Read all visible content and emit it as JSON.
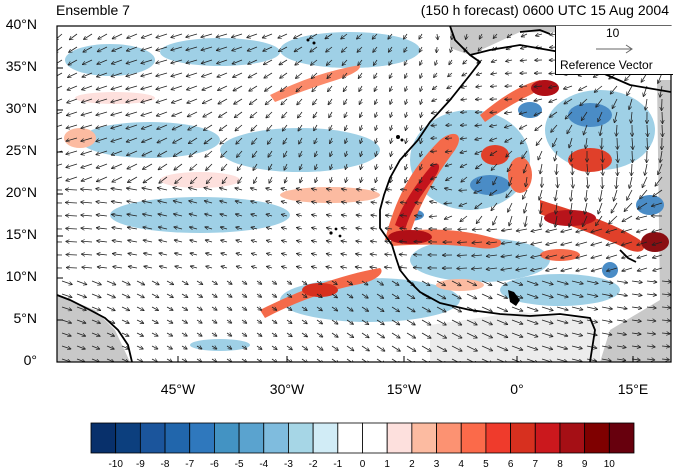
{
  "title": {
    "left": "Ensemble 7",
    "right": "(150 h forecast) 0600 UTC 15 Aug 2004"
  },
  "axes": {
    "lat_ticks": [
      "40°N",
      "35°N",
      "30°N",
      "25°N",
      "20°N",
      "15°N",
      "10°N",
      "5°N",
      "0°"
    ],
    "lon_ticks": [
      "45°W",
      "30°W",
      "15°W",
      "0°",
      "15°E"
    ]
  },
  "reference_vector": {
    "magnitude": "10",
    "caption": "Reference Vector"
  },
  "colorbar": {
    "labels": [
      "-10",
      "-9",
      "-8",
      "-7",
      "-6",
      "-5",
      "-4",
      "-3",
      "-2",
      "-1",
      "0",
      "1",
      "2",
      "3",
      "4",
      "5",
      "6",
      "7",
      "8",
      "9",
      "10"
    ],
    "colors": [
      "#08306b",
      "#0c3f7e",
      "#1b559c",
      "#2166ac",
      "#2f78bd",
      "#4393c3",
      "#5aa3cf",
      "#7fbcde",
      "#a6d6e6",
      "#d1ecf6",
      "#ffffff",
      "#ffffff",
      "#fde0dd",
      "#fcbba1",
      "#fc9272",
      "#fb6a4a",
      "#ef3b2c",
      "#d7301f",
      "#cb181d",
      "#a50f15",
      "#7f0000",
      "#67000d"
    ]
  },
  "map": {
    "land_mask_color": "#c8c8c8",
    "positive_color": "#e0402a",
    "negative_color": "#3a7cc0"
  }
}
